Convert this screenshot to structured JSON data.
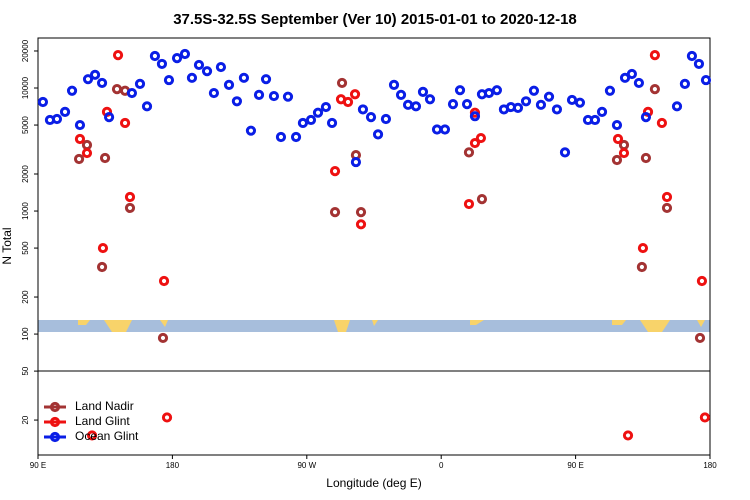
{
  "chart_data": {
    "type": "scatter",
    "title": "37.5S-32.5S September (Ver 10)   2015-01-01 to 2020-12-18",
    "x_label": "Longitude (deg E)",
    "y_label": "N Total",
    "xlim": [
      90,
      540
    ],
    "xticks": [
      {
        "value": 90,
        "label": "90 E"
      },
      180,
      {
        "value": 270,
        "label": "90 W"
      },
      {
        "value": 360,
        "label": "0"
      },
      {
        "value": 450,
        "label": "90 E"
      },
      {
        "value": 540,
        "label": "180"
      }
    ],
    "ylim": [
      10.4,
      25500
    ],
    "log_y": true,
    "yticks": [
      20,
      50,
      100,
      200,
      500,
      1000,
      2000,
      5000,
      10000,
      20000
    ],
    "legend": "lower left",
    "series": [
      {
        "name": "Land Nadir",
        "color": "#a33333",
        "x": [
          117.5,
          122.8,
          134.9,
          132.9,
          142.9,
          148.3,
          151.6,
          173.7,
          288.9,
          293.6,
          302.9,
          306.3,
          378.6,
          387.3,
          477.7,
          482.4,
          497.1,
          494.4,
          503.1,
          511.2,
          533.3
        ],
        "values": [
          2650,
          3440,
          2700,
          351,
          9800,
          9500,
          1060,
          93,
          980,
          11000,
          2850,
          980,
          3000,
          1250,
          2600,
          3440,
          2700,
          351,
          9800,
          1060,
          93
        ]
      },
      {
        "name": "Land Glint",
        "color": "#ee1111",
        "x": [
          118.1,
          122.8,
          136.2,
          133.5,
          143.6,
          148.3,
          151.6,
          174.4,
          176.4,
          126.2,
          288.9,
          292.9,
          297.6,
          302.3,
          306.3,
          378.6,
          382.6,
          386.6,
          382.6,
          478.4,
          482.4,
          498.5,
          495.1,
          503.1,
          507.8,
          511.2,
          534.6,
          536.6,
          485.1
        ],
        "values": [
          3850,
          2960,
          6400,
          500,
          18500,
          5200,
          1300,
          270,
          21,
          15,
          2110,
          8100,
          7700,
          8900,
          780,
          1140,
          3570,
          3920,
          6300,
          3850,
          2960,
          6400,
          500,
          18500,
          5200,
          1300,
          270,
          21,
          15
        ]
      },
      {
        "name": "Ocean Glint",
        "color": "#0a1ee6",
        "x": [
          93.3,
          98.0,
          102.7,
          108.1,
          112.8,
          118.1,
          123.5,
          128.2,
          132.9,
          137.6,
          152.9,
          158.3,
          163.0,
          168.3,
          173.0,
          177.7,
          183.1,
          188.4,
          193.1,
          197.8,
          203.2,
          207.8,
          212.5,
          217.9,
          223.2,
          227.9,
          232.6,
          238.0,
          242.7,
          248.0,
          252.7,
          257.4,
          262.8,
          267.4,
          272.8,
          277.5,
          282.8,
          286.9,
          302.9,
          307.6,
          313.0,
          317.7,
          323.0,
          328.4,
          333.1,
          337.8,
          343.1,
          347.8,
          352.5,
          357.2,
          362.5,
          367.9,
          372.6,
          377.3,
          382.6,
          387.3,
          392.0,
          397.3,
          402.0,
          406.7,
          411.4,
          416.8,
          422.1,
          426.8,
          432.2,
          437.5,
          442.9,
          447.6,
          452.9,
          458.3,
          463.0,
          467.7,
          473.0,
          477.7,
          483.1,
          487.7,
          492.4,
          497.1,
          517.9,
          523.2,
          527.9,
          532.6,
          537.3
        ],
        "values": [
          7700,
          5500,
          5600,
          6400,
          9500,
          5000,
          11800,
          12800,
          11000,
          5800,
          9100,
          10800,
          7100,
          18200,
          15700,
          11600,
          17500,
          18900,
          12100,
          15400,
          13700,
          9100,
          14800,
          10600,
          7800,
          12100,
          4500,
          8800,
          11800,
          8600,
          4000,
          8500,
          4000,
          5200,
          5500,
          6300,
          7000,
          5200,
          2500,
          6700,
          5800,
          4200,
          5600,
          10600,
          8800,
          7300,
          7100,
          9300,
          8100,
          4600,
          4600,
          7400,
          9600,
          7400,
          5900,
          8900,
          9100,
          9600,
          6700,
          7000,
          6900,
          7800,
          9500,
          7300,
          8500,
          6700,
          3000,
          8000,
          7600,
          5500,
          5500,
          6400,
          9500,
          5000,
          12100,
          13000,
          11000,
          5800,
          7100,
          10800,
          18200,
          15700,
          11600
        ]
      }
    ]
  }
}
